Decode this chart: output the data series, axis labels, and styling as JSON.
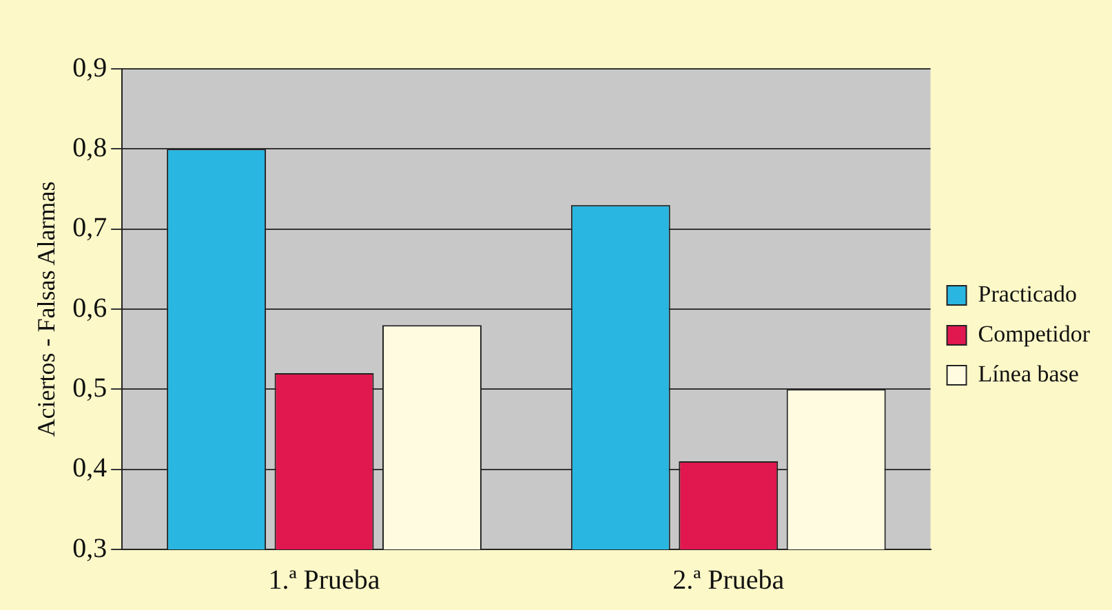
{
  "chart_data": {
    "type": "bar",
    "ylabel": "Aciertos - Falsas Alarmas",
    "categories": [
      "1.ª Prueba",
      "2.ª Prueba"
    ],
    "series": [
      {
        "name": "Practicado",
        "color": "#29b6e0",
        "values": [
          0.8,
          0.73
        ]
      },
      {
        "name": "Competidor",
        "color": "#e0184f",
        "values": [
          0.52,
          0.41
        ]
      },
      {
        "name": "Línea base",
        "color": "#fffbe0",
        "values": [
          0.58,
          0.5
        ]
      }
    ],
    "ylim": [
      0.3,
      0.9
    ],
    "yticks": [
      {
        "value": 0.3,
        "label": "0,3"
      },
      {
        "value": 0.4,
        "label": "0,4"
      },
      {
        "value": 0.5,
        "label": "0,5"
      },
      {
        "value": 0.6,
        "label": "0,6"
      },
      {
        "value": 0.7,
        "label": "0,7"
      },
      {
        "value": 0.8,
        "label": "0,8"
      },
      {
        "value": 0.9,
        "label": "0,9"
      }
    ],
    "grid": "y",
    "legend": "right"
  }
}
